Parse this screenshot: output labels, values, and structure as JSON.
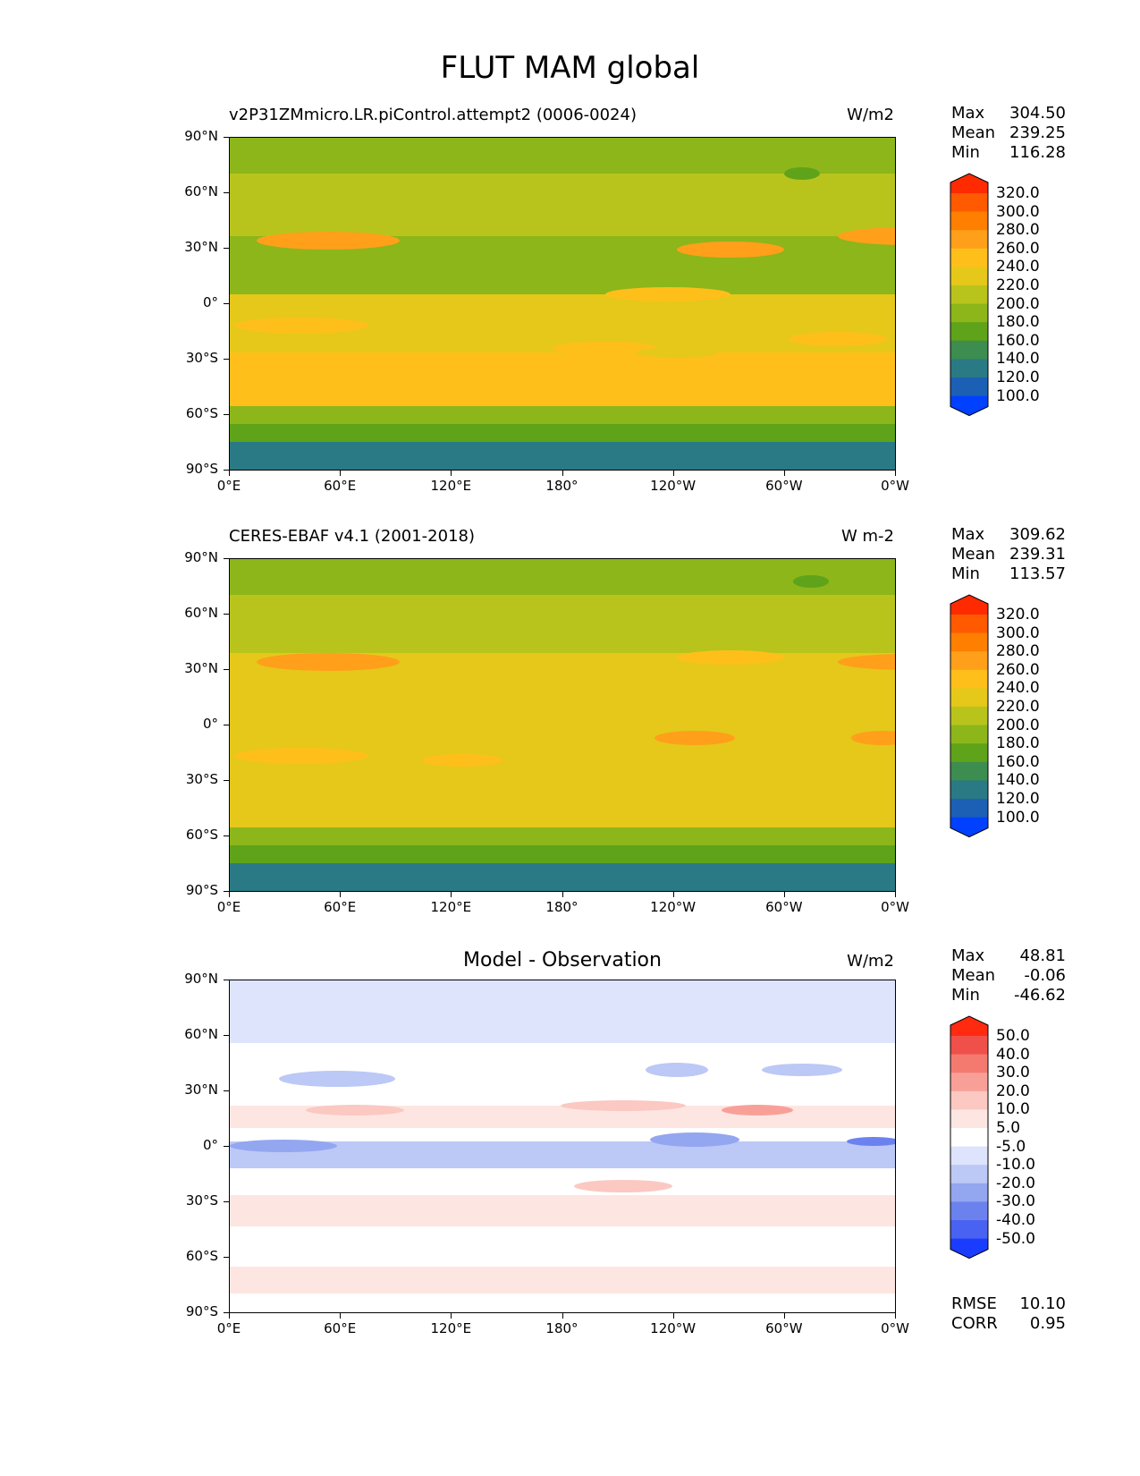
{
  "figure_title": "FLUT MAM global",
  "lat_ticks": [
    "90°N",
    "60°N",
    "30°N",
    "0°",
    "30°S",
    "60°S",
    "90°S"
  ],
  "lon_ticks": [
    "0°E",
    "60°E",
    "120°E",
    "180°",
    "120°W",
    "60°W",
    "0°W"
  ],
  "chart_data": [
    {
      "type": "heatmap",
      "title": "v2P31ZMmicro.LR.piControl.attempt2 (0006-0024)",
      "units": "W/m2",
      "stats": {
        "max": "304.50",
        "mean": "239.25",
        "min": "116.28"
      },
      "colorbar_ticks": [
        "320.0",
        "300.0",
        "280.0",
        "260.0",
        "240.0",
        "220.0",
        "200.0",
        "180.0",
        "160.0",
        "140.0",
        "120.0",
        "100.0"
      ],
      "colors": [
        "#ff2a00",
        "#ff5a00",
        "#ff7f00",
        "#ff9f1a",
        "#ffbf1a",
        "#e5c81a",
        "#b8c41c",
        "#8cb61a",
        "#5fa31a",
        "#3d8c50",
        "#2a7a85",
        "#1c60b5",
        "#0040ff"
      ],
      "xlim": [
        0,
        360
      ],
      "ylim": [
        -90,
        90
      ]
    },
    {
      "type": "heatmap",
      "title": "CERES-EBAF v4.1 (2001-2018)",
      "units": "W m-2",
      "stats": {
        "max": "309.62",
        "mean": "239.31",
        "min": "113.57"
      },
      "colorbar_ticks": [
        "320.0",
        "300.0",
        "280.0",
        "260.0",
        "240.0",
        "220.0",
        "200.0",
        "180.0",
        "160.0",
        "140.0",
        "120.0",
        "100.0"
      ],
      "colors": [
        "#ff2a00",
        "#ff5a00",
        "#ff7f00",
        "#ff9f1a",
        "#ffbf1a",
        "#e5c81a",
        "#b8c41c",
        "#8cb61a",
        "#5fa31a",
        "#3d8c50",
        "#2a7a85",
        "#1c60b5",
        "#0040ff"
      ],
      "xlim": [
        0,
        360
      ],
      "ylim": [
        -90,
        90
      ]
    },
    {
      "type": "heatmap",
      "title": "Model - Observation",
      "units": "W/m2",
      "stats": {
        "max": "48.81",
        "mean": "-0.06",
        "min": "-46.62"
      },
      "rmse": "10.10",
      "corr": "0.95",
      "colorbar_ticks": [
        "50.0",
        "40.0",
        "30.0",
        "20.0",
        "10.0",
        "5.0",
        "-5.0",
        "-10.0",
        "-20.0",
        "-30.0",
        "-40.0",
        "-50.0"
      ],
      "colors": [
        "#ff2a10",
        "#f0504a",
        "#f47a70",
        "#f8a098",
        "#fbc8c2",
        "#fde6e2",
        "#ffffff",
        "#dde4fb",
        "#bcc8f5",
        "#93a6f0",
        "#6b82ee",
        "#4a62f2",
        "#1a3cff"
      ],
      "xlim": [
        0,
        360
      ],
      "ylim": [
        -90,
        90
      ]
    }
  ],
  "labels": {
    "max": "Max",
    "mean": "Mean",
    "min": "Min",
    "rmse": "RMSE",
    "corr": "CORR"
  }
}
